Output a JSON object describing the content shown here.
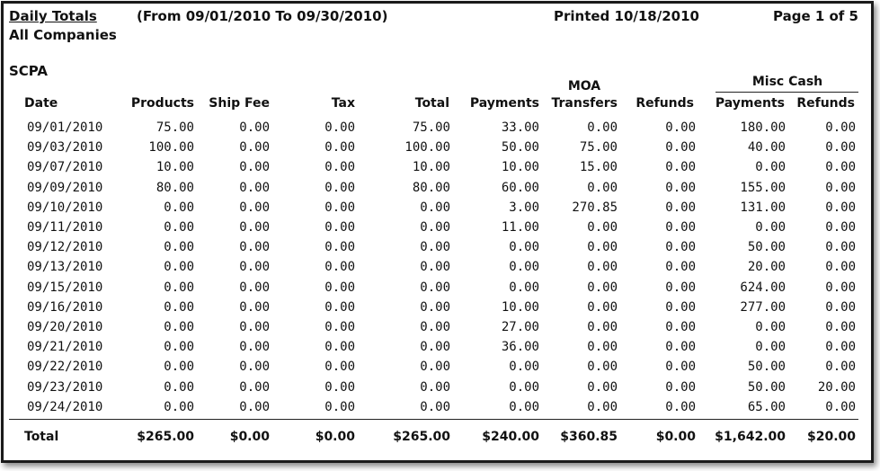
{
  "header": {
    "title": "Daily Totals",
    "date_range": "(From 09/01/2010 To 09/30/2010)",
    "printed": "Printed 10/18/2010",
    "page": "Page 1 of 5",
    "scope": "All Companies",
    "company": "SCPA"
  },
  "columns": {
    "date": "Date",
    "products": "Products",
    "ship_fee": "Ship Fee",
    "tax": "Tax",
    "total": "Total",
    "payments": "Payments",
    "moa_top": "MOA",
    "moa_bottom": "Transfers",
    "refunds": "Refunds",
    "misc_cash": "Misc Cash",
    "misc_payments": "Payments",
    "misc_refunds": "Refunds"
  },
  "rows": [
    [
      "09/01/2010",
      "75.00",
      "0.00",
      "0.00",
      "75.00",
      "33.00",
      "0.00",
      "0.00",
      "180.00",
      "0.00"
    ],
    [
      "09/03/2010",
      "100.00",
      "0.00",
      "0.00",
      "100.00",
      "50.00",
      "75.00",
      "0.00",
      "40.00",
      "0.00"
    ],
    [
      "09/07/2010",
      "10.00",
      "0.00",
      "0.00",
      "10.00",
      "10.00",
      "15.00",
      "0.00",
      "0.00",
      "0.00"
    ],
    [
      "09/09/2010",
      "80.00",
      "0.00",
      "0.00",
      "80.00",
      "60.00",
      "0.00",
      "0.00",
      "155.00",
      "0.00"
    ],
    [
      "09/10/2010",
      "0.00",
      "0.00",
      "0.00",
      "0.00",
      "3.00",
      "270.85",
      "0.00",
      "131.00",
      "0.00"
    ],
    [
      "09/11/2010",
      "0.00",
      "0.00",
      "0.00",
      "0.00",
      "11.00",
      "0.00",
      "0.00",
      "0.00",
      "0.00"
    ],
    [
      "09/12/2010",
      "0.00",
      "0.00",
      "0.00",
      "0.00",
      "0.00",
      "0.00",
      "0.00",
      "50.00",
      "0.00"
    ],
    [
      "09/13/2010",
      "0.00",
      "0.00",
      "0.00",
      "0.00",
      "0.00",
      "0.00",
      "0.00",
      "20.00",
      "0.00"
    ],
    [
      "09/15/2010",
      "0.00",
      "0.00",
      "0.00",
      "0.00",
      "0.00",
      "0.00",
      "0.00",
      "624.00",
      "0.00"
    ],
    [
      "09/16/2010",
      "0.00",
      "0.00",
      "0.00",
      "0.00",
      "10.00",
      "0.00",
      "0.00",
      "277.00",
      "0.00"
    ],
    [
      "09/20/2010",
      "0.00",
      "0.00",
      "0.00",
      "0.00",
      "27.00",
      "0.00",
      "0.00",
      "0.00",
      "0.00"
    ],
    [
      "09/21/2010",
      "0.00",
      "0.00",
      "0.00",
      "0.00",
      "36.00",
      "0.00",
      "0.00",
      "0.00",
      "0.00"
    ],
    [
      "09/22/2010",
      "0.00",
      "0.00",
      "0.00",
      "0.00",
      "0.00",
      "0.00",
      "0.00",
      "50.00",
      "0.00"
    ],
    [
      "09/23/2010",
      "0.00",
      "0.00",
      "0.00",
      "0.00",
      "0.00",
      "0.00",
      "0.00",
      "50.00",
      "20.00"
    ],
    [
      "09/24/2010",
      "0.00",
      "0.00",
      "0.00",
      "0.00",
      "0.00",
      "0.00",
      "0.00",
      "65.00",
      "0.00"
    ]
  ],
  "totals": [
    "Total",
    "$265.00",
    "$0.00",
    "$0.00",
    "$265.00",
    "$240.00",
    "$360.85",
    "$0.00",
    "$1,642.00",
    "$20.00"
  ]
}
